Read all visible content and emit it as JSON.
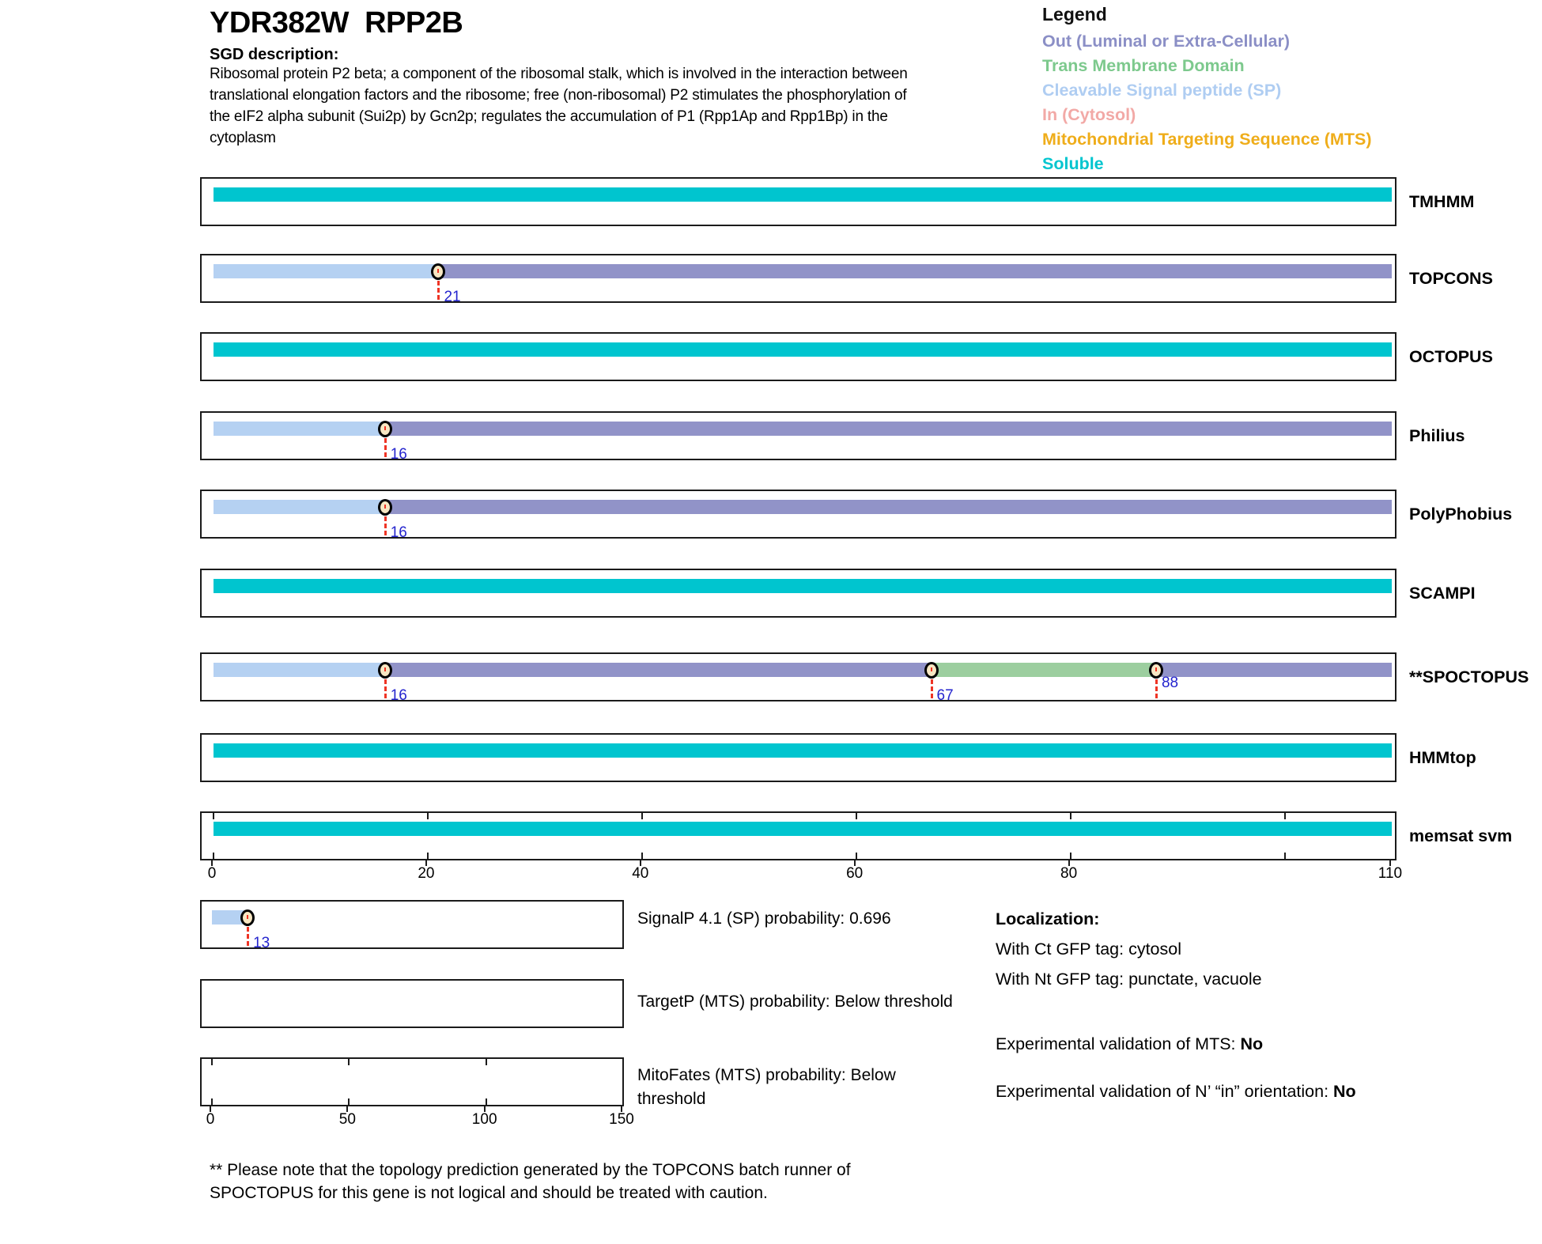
{
  "header": {
    "title": "YDR382W  RPP2B",
    "sgd_label": "SGD description:",
    "description_lines": [
      "Ribosomal protein P2 beta; a component of the ribosomal stalk, which is involved in the interaction between",
      "translational elongation factors and the ribosome; free (non-ribosomal) P2 stimulates the phosphorylation of",
      "the eIF2 alpha subunit (Sui2p) by Gcn2p; regulates the accumulation of P1 (Rpp1Ap and Rpp1Bp) in the",
      "cytoplasm"
    ]
  },
  "legend": {
    "title": "Legend",
    "items": [
      {
        "key": "out",
        "label": "Out (Luminal or Extra-Cellular)",
        "color": "#8B8FC6"
      },
      {
        "key": "tm",
        "label": "Trans Membrane Domain",
        "color": "#7DC98D"
      },
      {
        "key": "sp",
        "label": "Cleavable Signal peptide (SP)",
        "color": "#AFCDF2"
      },
      {
        "key": "in",
        "label": "In (Cytosol)",
        "color": "#F2A9A6"
      },
      {
        "key": "mts",
        "label": "Mitochondrial Targeting Sequence (MTS)",
        "color": "#EFAD1A"
      },
      {
        "key": "soluble",
        "label": "Soluble",
        "color": "#00C5CF"
      }
    ]
  },
  "palette": {
    "out": "#9193C8",
    "tm": "#9CCE9F",
    "sp": "#B5D1F2",
    "in": "#F2A9A6",
    "mts": "#EFAD1A",
    "soluble": "#00C5CF",
    "marker_fill": "#F7E7C3",
    "marker_line_red": "#EE3425",
    "position_label_blue": "#2424CE"
  },
  "chart_data": {
    "type": "bar",
    "title": "Membrane topology predictions per residue",
    "x_range": [
      0,
      110
    ],
    "x_axis_labels": [
      0,
      20,
      40,
      60,
      80,
      110
    ],
    "inner_ticks": [
      0,
      20,
      40,
      60,
      80,
      100
    ],
    "tracks": [
      {
        "name": "TMHMM",
        "segments": [
          {
            "region": "soluble",
            "start": 0,
            "end": 110
          }
        ],
        "markers": []
      },
      {
        "name": "TOPCONS",
        "segments": [
          {
            "region": "sp",
            "start": 0,
            "end": 21
          },
          {
            "region": "out",
            "start": 21,
            "end": 110
          }
        ],
        "markers": [
          {
            "pos": 21,
            "label": "21",
            "variant": "low"
          }
        ]
      },
      {
        "name": "OCTOPUS",
        "segments": [
          {
            "region": "soluble",
            "start": 0,
            "end": 110
          }
        ],
        "markers": []
      },
      {
        "name": "Philius",
        "segments": [
          {
            "region": "sp",
            "start": 0,
            "end": 16
          },
          {
            "region": "out",
            "start": 16,
            "end": 110
          }
        ],
        "markers": [
          {
            "pos": 16,
            "label": "16",
            "variant": "low"
          }
        ]
      },
      {
        "name": "PolyPhobius",
        "segments": [
          {
            "region": "sp",
            "start": 0,
            "end": 16
          },
          {
            "region": "out",
            "start": 16,
            "end": 110
          }
        ],
        "markers": [
          {
            "pos": 16,
            "label": "16",
            "variant": "low"
          }
        ]
      },
      {
        "name": "SCAMPI",
        "segments": [
          {
            "region": "soluble",
            "start": 0,
            "end": 110
          }
        ],
        "markers": []
      },
      {
        "name": "**SPOCTOPUS",
        "segments": [
          {
            "region": "sp",
            "start": 0,
            "end": 16
          },
          {
            "region": "out",
            "start": 16,
            "end": 67
          },
          {
            "region": "tm",
            "start": 67,
            "end": 88
          },
          {
            "region": "out",
            "start": 88,
            "end": 110
          }
        ],
        "markers": [
          {
            "pos": 16,
            "label": "16",
            "variant": "low"
          },
          {
            "pos": 67,
            "label": "67",
            "variant": "low"
          },
          {
            "pos": 88,
            "label": "88",
            "variant": "high"
          }
        ]
      },
      {
        "name": "HMMtop",
        "segments": [
          {
            "region": "soluble",
            "start": 0,
            "end": 110
          }
        ],
        "markers": []
      },
      {
        "name": "memsat svm",
        "segments": [
          {
            "region": "soluble",
            "start": 0,
            "end": 110
          }
        ],
        "markers": [],
        "has_axis_ticks": true
      }
    ],
    "probability_plots": [
      {
        "label_lines": [
          "SignalP 4.1 (SP) probability: 0.696"
        ],
        "x_range": [
          0,
          150
        ],
        "bar": {
          "region": "sp",
          "start": 0,
          "end": 13
        },
        "markers": [
          {
            "pos": 13,
            "label": "13",
            "variant": "low"
          }
        ]
      },
      {
        "label_lines": [
          "TargetP (MTS) probability: Below threshold"
        ],
        "x_range": [
          0,
          150
        ],
        "bar": null,
        "markers": []
      },
      {
        "label_lines": [
          "MitoFates (MTS) probability: Below",
          "threshold"
        ],
        "x_range": [
          0,
          150
        ],
        "bar": null,
        "markers": [],
        "axis_labels": [
          0,
          50,
          100,
          150
        ],
        "inner_ticks": [
          0,
          50,
          100
        ]
      }
    ]
  },
  "localization": {
    "title": "Localization:",
    "gfp_lines": [
      "With Ct GFP tag: cytosol",
      "With Nt GFP tag: punctate, vacuole"
    ],
    "mts_prefix": "Experimental validation of MTS: ",
    "mts_value": "No",
    "orientation_prefix": "Experimental validation of N’ “in” orientation: ",
    "orientation_value": "No"
  },
  "footnote_lines": [
    "** Please note that the topology prediction generated by the TOPCONS batch runner of",
    "SPOCTOPUS for this gene is not logical and should be treated with caution."
  ]
}
